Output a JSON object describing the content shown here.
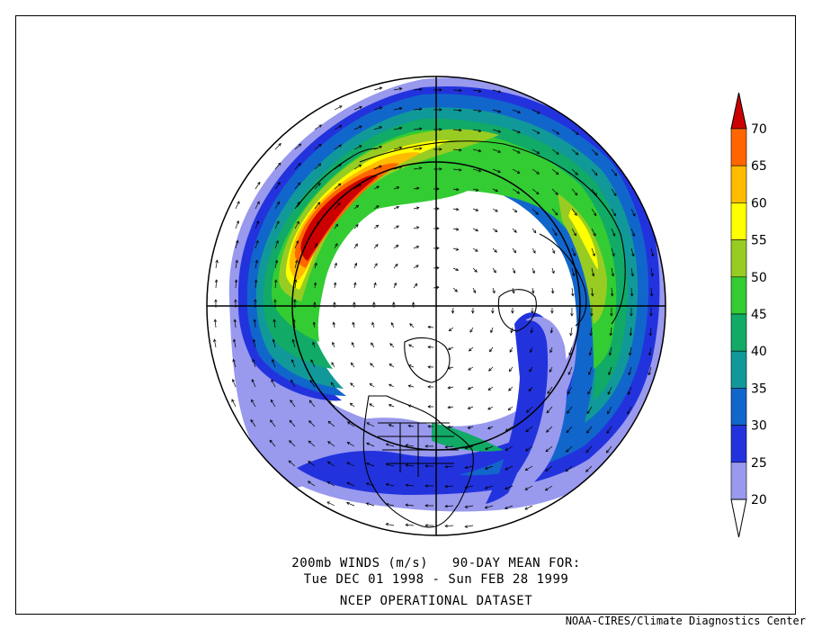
{
  "caption": {
    "line1": "200mb WINDS (m/s)   90-DAY MEAN FOR:",
    "line2": "Tue DEC 01 1998 - Sun FEB 28 1999",
    "line3": "NCEP OPERATIONAL DATASET"
  },
  "credit": "NOAA-CIRES/Climate Diagnostics Center",
  "colorbar": {
    "levels": [
      "20",
      "25",
      "30",
      "35",
      "40",
      "45",
      "50",
      "55",
      "60",
      "65",
      "70"
    ],
    "colors": [
      "#9999ee",
      "#2233dd",
      "#1166cc",
      "#119999",
      "#11aa66",
      "#33cc33",
      "#99cc22",
      "#ffff00",
      "#ffbb00",
      "#ff6600",
      "#cc0000"
    ],
    "below_color": "#ffffff"
  },
  "map": {
    "projection": "north polar stereographic",
    "variable": "200mb wind speed",
    "units": "m/s"
  }
}
